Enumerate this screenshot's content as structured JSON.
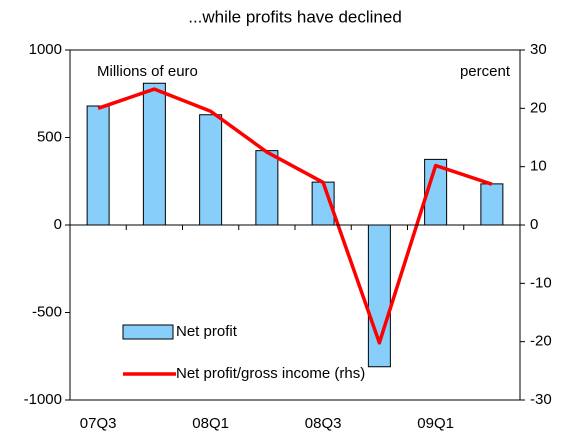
{
  "chart_data": {
    "type": "bar_line",
    "title": "...while profits have declined",
    "y_label": "Millions of euro",
    "y2_label": "percent",
    "categories": [
      "07Q3",
      null,
      "08Q1",
      null,
      "08Q3",
      null,
      "09Q1",
      null
    ],
    "series": [
      {
        "name": "Net profit",
        "type": "bar",
        "color": "#87cefa",
        "values": [
          680,
          810,
          630,
          425,
          245,
          -810,
          375,
          235
        ]
      },
      {
        "name": "Net profit/gross income (rhs)",
        "type": "line",
        "axis": "y2",
        "color": "#ff0000",
        "values": [
          20,
          23.3,
          19.5,
          12.5,
          7.3,
          -20.2,
          10.2,
          7
        ]
      }
    ],
    "ylim": [
      -1000,
      1000
    ],
    "yticks": [
      -1000,
      -500,
      0,
      500,
      1000
    ],
    "y2lim": [
      -30,
      30
    ],
    "y2ticks": [
      -30,
      -20,
      -10,
      0,
      10,
      20,
      30
    ],
    "legend": "lower left",
    "grid": false
  }
}
